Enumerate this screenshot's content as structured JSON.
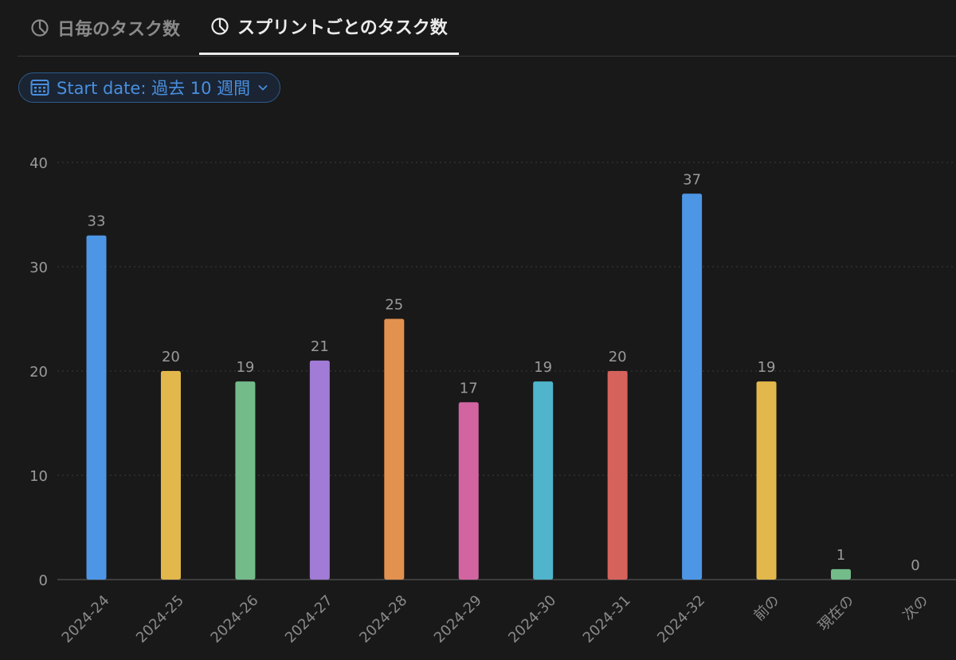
{
  "tabs": [
    {
      "label": "日毎のタスク数",
      "icon": "pie-chart-icon",
      "active": false
    },
    {
      "label": "スプリントごとのタスク数",
      "icon": "pie-chart-icon",
      "active": true
    }
  ],
  "filter": {
    "label": "Start date: 過去 10 週間",
    "icon": "calendar-icon",
    "dropdown_icon": "chevron-down-icon"
  },
  "colors": {
    "background": "#191919",
    "accent": "#4a8fdf",
    "grid": "#3a3a3a"
  },
  "chart_data": {
    "type": "bar",
    "categories": [
      "2024-24",
      "2024-25",
      "2024-26",
      "2024-27",
      "2024-28",
      "2024-29",
      "2024-30",
      "2024-31",
      "2024-32",
      "前の",
      "現在の",
      "次の"
    ],
    "values": [
      33,
      20,
      19,
      21,
      25,
      17,
      19,
      20,
      37,
      19,
      1,
      0
    ],
    "colors": [
      "#4d96e6",
      "#e2b84c",
      "#74bb8a",
      "#a17bd6",
      "#e3914f",
      "#d265a1",
      "#4fb4cc",
      "#d6625c",
      "#4d96e6",
      "#e2b84c",
      "#74bb8a",
      "#a17bd6"
    ],
    "yticks": [
      0,
      10,
      20,
      30,
      40
    ],
    "ylim": [
      0,
      40
    ],
    "grid": true,
    "data_labels": true,
    "title": "",
    "xlabel": "",
    "ylabel": ""
  }
}
